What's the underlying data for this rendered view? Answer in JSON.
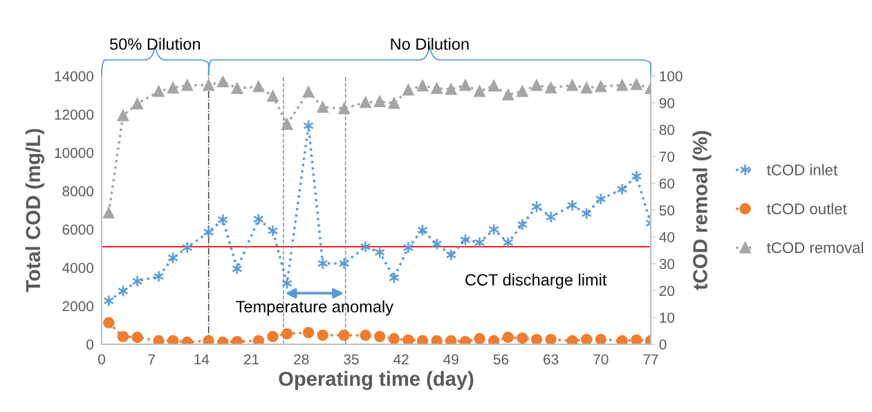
{
  "chart_data": {
    "type": "line",
    "xlabel": "Operating time (day)",
    "ylabel": "Total COD (mg/L)",
    "y2label": "tCOD remoal (%)",
    "x": [
      1,
      3,
      5,
      8,
      10,
      12,
      15,
      17,
      19,
      22,
      24,
      26,
      29,
      31,
      34,
      37,
      39,
      41,
      43,
      45,
      47,
      49,
      51,
      53,
      55,
      57,
      59,
      61,
      63,
      66,
      68,
      70,
      73,
      75,
      77
    ],
    "series": [
      {
        "name": "tCOD inlet",
        "color": "#5b9bd5",
        "marker": "cross",
        "values": [
          2270,
          2780,
          3290,
          3540,
          4510,
          5050,
          5850,
          6500,
          3940,
          6530,
          5920,
          3180,
          11410,
          4220,
          4220,
          5090,
          4800,
          3470,
          5050,
          5960,
          5230,
          4660,
          5450,
          5310,
          5990,
          5310,
          6250,
          7180,
          6640,
          7260,
          6820,
          7580,
          8090,
          8770,
          6320
        ]
      },
      {
        "name": "tCOD outlet",
        "color": "#ed7d31",
        "marker": "circle",
        "values": [
          1120,
          400,
          360,
          180,
          180,
          110,
          180,
          110,
          140,
          180,
          400,
          540,
          610,
          470,
          470,
          470,
          400,
          290,
          220,
          180,
          180,
          180,
          140,
          290,
          180,
          360,
          320,
          250,
          250,
          180,
          250,
          250,
          180,
          220,
          180
        ]
      },
      {
        "name": "tCOD removal",
        "color": "#a5a5a5",
        "marker": "triangle",
        "axis": "y2",
        "values": [
          49,
          85.3,
          89.7,
          94.3,
          95.6,
          96.6,
          96.6,
          97.9,
          95.4,
          96.1,
          92.5,
          82,
          94.1,
          88.4,
          87.9,
          90.2,
          90.5,
          89.9,
          94.8,
          96.4,
          95.4,
          95.1,
          96.6,
          94.3,
          96.4,
          93,
          94.3,
          96.6,
          95.6,
          96.6,
          95.6,
          96.1,
          96.6,
          96.9,
          95.4
        ]
      }
    ],
    "line_style": "dotted",
    "xlim": [
      0,
      77
    ],
    "xticks": [
      0,
      7,
      14,
      21,
      28,
      35,
      42,
      49,
      56,
      63,
      70,
      77
    ],
    "ylim": [
      0,
      14000
    ],
    "yticks": [
      0,
      2000,
      4000,
      6000,
      8000,
      10000,
      12000,
      14000
    ],
    "y2lim": [
      0,
      100
    ],
    "y2ticks": [
      0,
      10,
      20,
      30,
      40,
      50,
      60,
      70,
      80,
      90,
      100
    ],
    "ref_lines": [
      {
        "axis": "y",
        "value": 5090,
        "label": "CCT discharge limit",
        "color": "#ff0000",
        "line_style": "solid"
      },
      {
        "axis": "x",
        "value": 15,
        "color": "#404040",
        "line_style": "dashdot"
      },
      {
        "axis": "x",
        "value": 25.5,
        "color": "#5b9bd5",
        "line_style": "dashed"
      },
      {
        "axis": "x",
        "value": 34.2,
        "color": "#5b9bd5",
        "line_style": "dashed"
      }
    ],
    "annotations": [
      "50% Dilution",
      "No Dilution",
      "Temperature anomaly"
    ],
    "grid": false,
    "legend": "right"
  }
}
